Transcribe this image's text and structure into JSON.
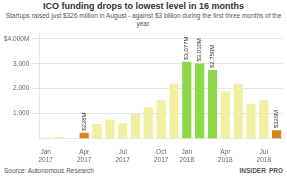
{
  "chart_data": {
    "type": "bar",
    "title": "ICO funding drops to lowest level in 16 months",
    "subtitle": "Startups raised just $326 million in August - against $3 billion during the first three months of the year.",
    "annotations": [
      "Source: Autonomous Research",
      "INSIDER",
      "PRO"
    ],
    "categories": [
      "Jan\n2017",
      null,
      null,
      "Apr\n2017",
      null,
      null,
      "Jul\n2017",
      null,
      null,
      "Oct\n2017",
      null,
      "Jan\n2018",
      null,
      null,
      "Apr\n2018",
      null,
      null,
      "Jul\n2018",
      null
    ],
    "values": [
      30,
      55,
      20,
      228,
      580,
      760,
      610,
      980,
      1240,
      1530,
      2200,
      3077,
      3010,
      2750,
      1880,
      2200,
      1380,
      1530,
      326
    ],
    "value_labels": [
      null,
      null,
      null,
      "$228M",
      null,
      null,
      null,
      null,
      null,
      null,
      null,
      "$3,077M",
      "$3,010M",
      "$2,750M",
      null,
      null,
      null,
      null,
      "$326M"
    ],
    "data_labels": true,
    "colors": [
      "#f0f0a0",
      "#f0f0a0",
      "#f0f0a0",
      "#d4861a",
      "#f0f0a0",
      "#f0f0a0",
      "#f0f0a0",
      "#f0f0a0",
      "#f0f0a0",
      "#f0f0a0",
      "#f0f0a0",
      "#8ed84a",
      "#8ed84a",
      "#8ed84a",
      "#f0f0a0",
      "#f0f0a0",
      "#f0f0a0",
      "#f0f0a0",
      "#d4861a"
    ],
    "ylim": [
      0,
      4200
    ],
    "yticks": [
      {
        "value": 1000,
        "label": "1,000"
      },
      {
        "value": 2000,
        "label": "2,000"
      },
      {
        "value": 3000,
        "label": "3,000"
      },
      {
        "value": 4000,
        "label": "$4,000M"
      }
    ],
    "grid": true
  }
}
